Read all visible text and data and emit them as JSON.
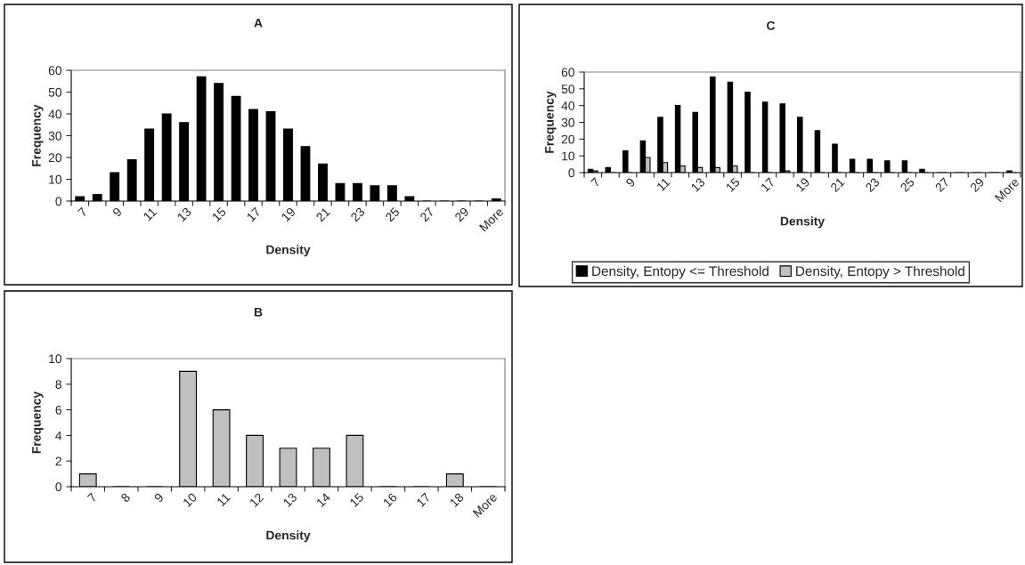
{
  "chart_data": [
    {
      "type": "bar",
      "title": "A",
      "xlabel": "Density",
      "ylabel": "Frequency",
      "categories": [
        "7",
        null,
        "9",
        null,
        "11",
        null,
        "13",
        null,
        "15",
        null,
        "17",
        null,
        "19",
        null,
        "21",
        null,
        "23",
        null,
        "25",
        null,
        "27",
        null,
        "29",
        null,
        "More"
      ],
      "series": [
        {
          "color": "#000000",
          "values": [
            2,
            3,
            13,
            19,
            33,
            40,
            36,
            57,
            54,
            48,
            42,
            41,
            33,
            25,
            17,
            8,
            8,
            7,
            7,
            2,
            0,
            0,
            0,
            0,
            1
          ]
        }
      ],
      "ylim": [
        0,
        60
      ],
      "yticks": [
        0,
        10,
        20,
        30,
        40,
        50,
        60
      ],
      "grid": false,
      "legend": false
    },
    {
      "type": "bar",
      "title": "C",
      "xlabel": "Density",
      "ylabel": "Frequency",
      "categories": [
        "7",
        null,
        "9",
        null,
        "11",
        null,
        "13",
        null,
        "15",
        null,
        "17",
        null,
        "19",
        null,
        "21",
        null,
        "23",
        null,
        "25",
        null,
        "27",
        null,
        "29",
        null,
        "More"
      ],
      "series": [
        {
          "name": "Density, Entopy <= Threshold",
          "color": "#000000",
          "values": [
            2,
            3,
            13,
            19,
            33,
            40,
            36,
            57,
            54,
            48,
            42,
            41,
            33,
            25,
            17,
            8,
            8,
            7,
            7,
            2,
            0,
            0,
            0,
            0,
            1
          ]
        },
        {
          "name": "Density, Entopy > Threshold",
          "color": "#c0c0c0",
          "values": [
            1,
            0,
            0,
            9,
            6,
            4,
            3,
            3,
            4,
            0,
            0,
            1,
            0,
            0,
            0,
            0,
            0,
            0,
            0,
            0,
            0,
            0,
            0,
            0,
            0
          ]
        }
      ],
      "ylim": [
        0,
        60
      ],
      "yticks": [
        0,
        10,
        20,
        30,
        40,
        50,
        60
      ],
      "grid": false,
      "legend": "bottom"
    },
    {
      "type": "bar",
      "title": "B",
      "xlabel": "Density",
      "ylabel": "Frequency",
      "categories": [
        "7",
        "8",
        "9",
        "10",
        "11",
        "12",
        "13",
        "14",
        "15",
        "16",
        "17",
        "18",
        "More"
      ],
      "series": [
        {
          "color": "#c0c0c0",
          "values": [
            1,
            0,
            0,
            9,
            6,
            4,
            3,
            3,
            4,
            0,
            0,
            1,
            0
          ]
        }
      ],
      "ylim": [
        0,
        10
      ],
      "yticks": [
        0,
        2,
        4,
        6,
        8,
        10
      ],
      "grid": false,
      "legend": false
    }
  ]
}
